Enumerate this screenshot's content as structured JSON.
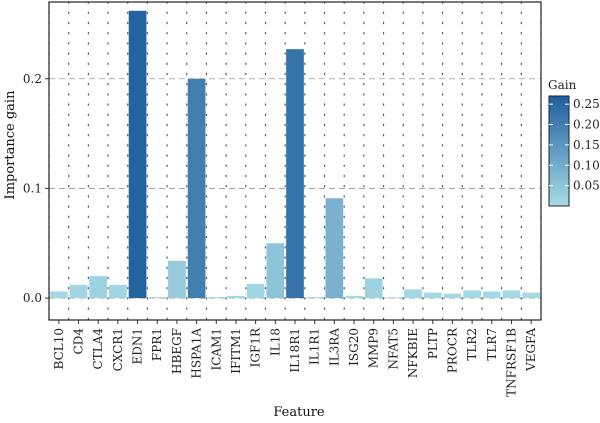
{
  "chart_data": {
    "type": "bar",
    "xlabel": "Feature",
    "ylabel": "Importance gain",
    "ylim": [
      -0.02,
      0.27
    ],
    "yticks": [
      0.0,
      0.1,
      0.2
    ],
    "ytick_labels": [
      "0.0",
      "0.1",
      "0.2"
    ],
    "grid": "dashed horizontal major + dotted vertical grid",
    "categories": [
      "BCL10",
      "CD4",
      "CTLA4",
      "CXCR1",
      "EDN1",
      "FPR1",
      "HBEGF",
      "HSPA1A",
      "ICAM1",
      "IFITM1",
      "IGF1R",
      "IL18",
      "IL18R1",
      "IL1R1",
      "IL3RA",
      "ISG20",
      "MMP9",
      "NFAT5",
      "NFKBIE",
      "PLTP",
      "PROCR",
      "TLR2",
      "TLR7",
      "TNFRSF1B",
      "VEGFA"
    ],
    "values": [
      0.006,
      0.012,
      0.02,
      0.012,
      0.262,
      0.001,
      0.034,
      0.2,
      0.001,
      0.002,
      0.013,
      0.05,
      0.227,
      0.001,
      0.091,
      0.002,
      0.018,
      0.0,
      0.008,
      0.005,
      0.004,
      0.007,
      0.006,
      0.007,
      0.005
    ],
    "legend": {
      "title": "Gain",
      "placement": "right",
      "ticks": [
        0.05,
        0.1,
        0.15,
        0.2,
        0.25
      ],
      "tick_labels": [
        "0.05",
        "0.10",
        "0.15",
        "0.20",
        "0.25"
      ],
      "range": [
        0.0,
        0.27
      ],
      "color_low": "#a6dbe6",
      "color_high": "#1f5f9e"
    }
  }
}
